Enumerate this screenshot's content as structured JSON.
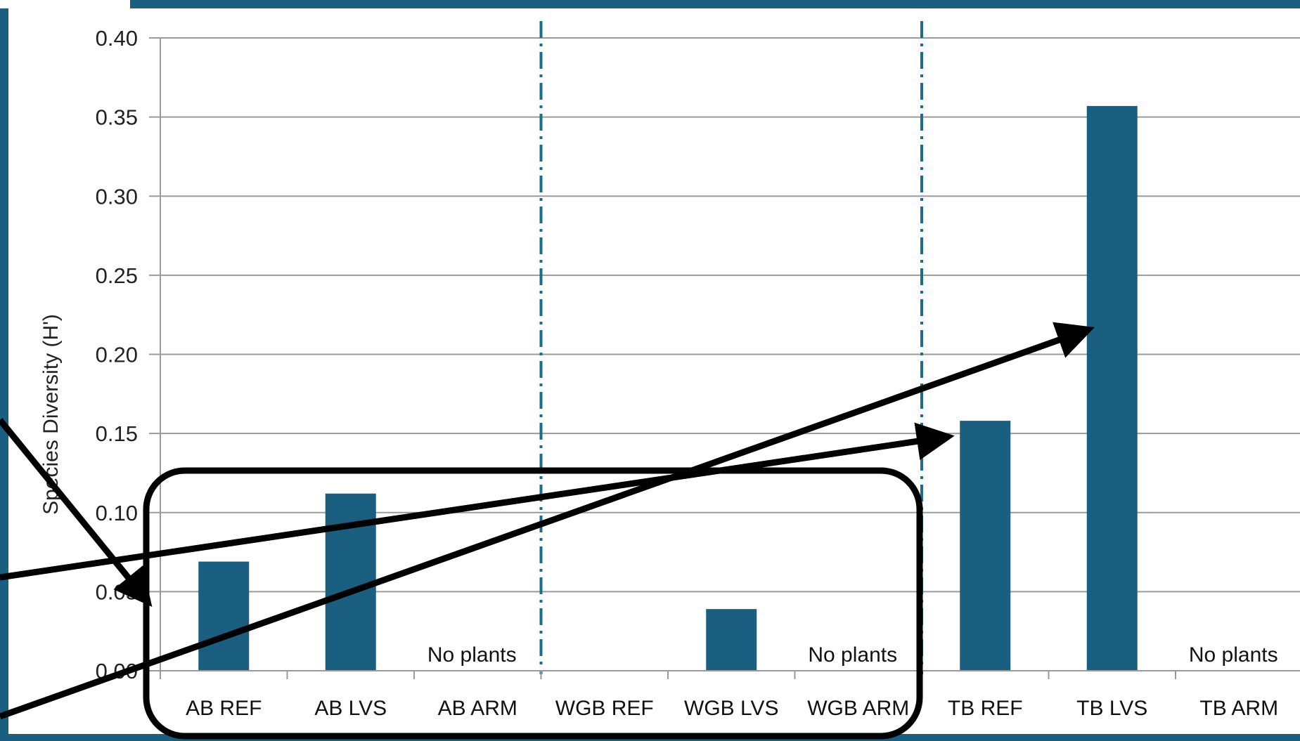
{
  "chart_data": {
    "type": "bar",
    "title": "",
    "xlabel": "",
    "ylabel": "Species Diversity (H')",
    "ylim": [
      0,
      0.4
    ],
    "yticks": [
      "0.00",
      "0.05",
      "0.10",
      "0.15",
      "0.20",
      "0.25",
      "0.30",
      "0.35",
      "0.40"
    ],
    "categories": [
      "AB REF",
      "AB LVS",
      "AB ARM",
      "WGB REF",
      "WGB LVS",
      "WGB ARM",
      "TB REF",
      "TB LVS",
      "TB ARM"
    ],
    "values": [
      0.069,
      0.112,
      null,
      null,
      0.039,
      null,
      0.158,
      0.357,
      null
    ],
    "annotations": [
      {
        "category": "AB ARM",
        "text": "No plants"
      },
      {
        "category": "WGB ARM",
        "text": "No plants"
      },
      {
        "category": "TB ARM",
        "text": "No plants"
      }
    ],
    "grid": true,
    "legend": "none"
  },
  "colors": {
    "bar": "#1a5e80",
    "frame": "#1a5e80",
    "grid": "#9a9a9a",
    "divider": "#1a6e8c",
    "overlay": "#000000"
  }
}
